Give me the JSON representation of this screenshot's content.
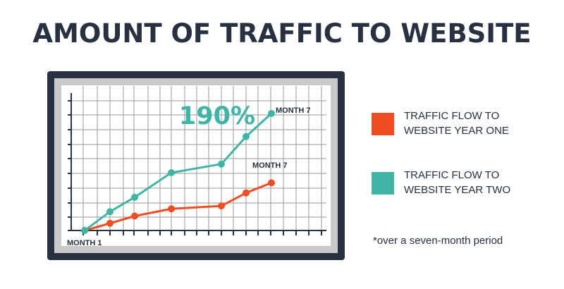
{
  "title": "AMOUNT OF TRAFFIC TO WEBSITE",
  "colors": {
    "dark": "#27313f",
    "year_one": "#f04d23",
    "year_two": "#40b5a6",
    "grid": "#9a9a9a",
    "screen": "#ffffff"
  },
  "legend": [
    {
      "label": "TRAFFIC FLOW TO\nWEBSITE YEAR ONE",
      "color": "#f04d23"
    },
    {
      "label": "TRAFFIC FLOW TO\nWEBSITE YEAR TWO",
      "color": "#40b5a6"
    }
  ],
  "footnote": "*over a seven-month period",
  "chart_data": {
    "type": "line",
    "x": [
      1,
      2,
      3,
      4,
      5,
      6,
      7
    ],
    "ylim": [
      0,
      100
    ],
    "xlim": [
      0.5,
      10.5
    ],
    "grid": true,
    "series": [
      {
        "values": [
          0,
          5,
          10,
          15,
          17,
          26,
          33
        ],
        "color": "#f04d23"
      },
      {
        "values": [
          0,
          13,
          23,
          40,
          46,
          65,
          81
        ],
        "color": "#40b5a6"
      }
    ],
    "annotations": [
      {
        "text": "190%",
        "series": 1,
        "color": "#40b5a6"
      },
      {
        "text": "MONTH 7",
        "series": 1,
        "color": "#27313f"
      },
      {
        "text": "MONTH 7",
        "series": 0,
        "color": "#27313f"
      },
      {
        "text": "MONTH 1",
        "color": "#27313f"
      }
    ]
  }
}
